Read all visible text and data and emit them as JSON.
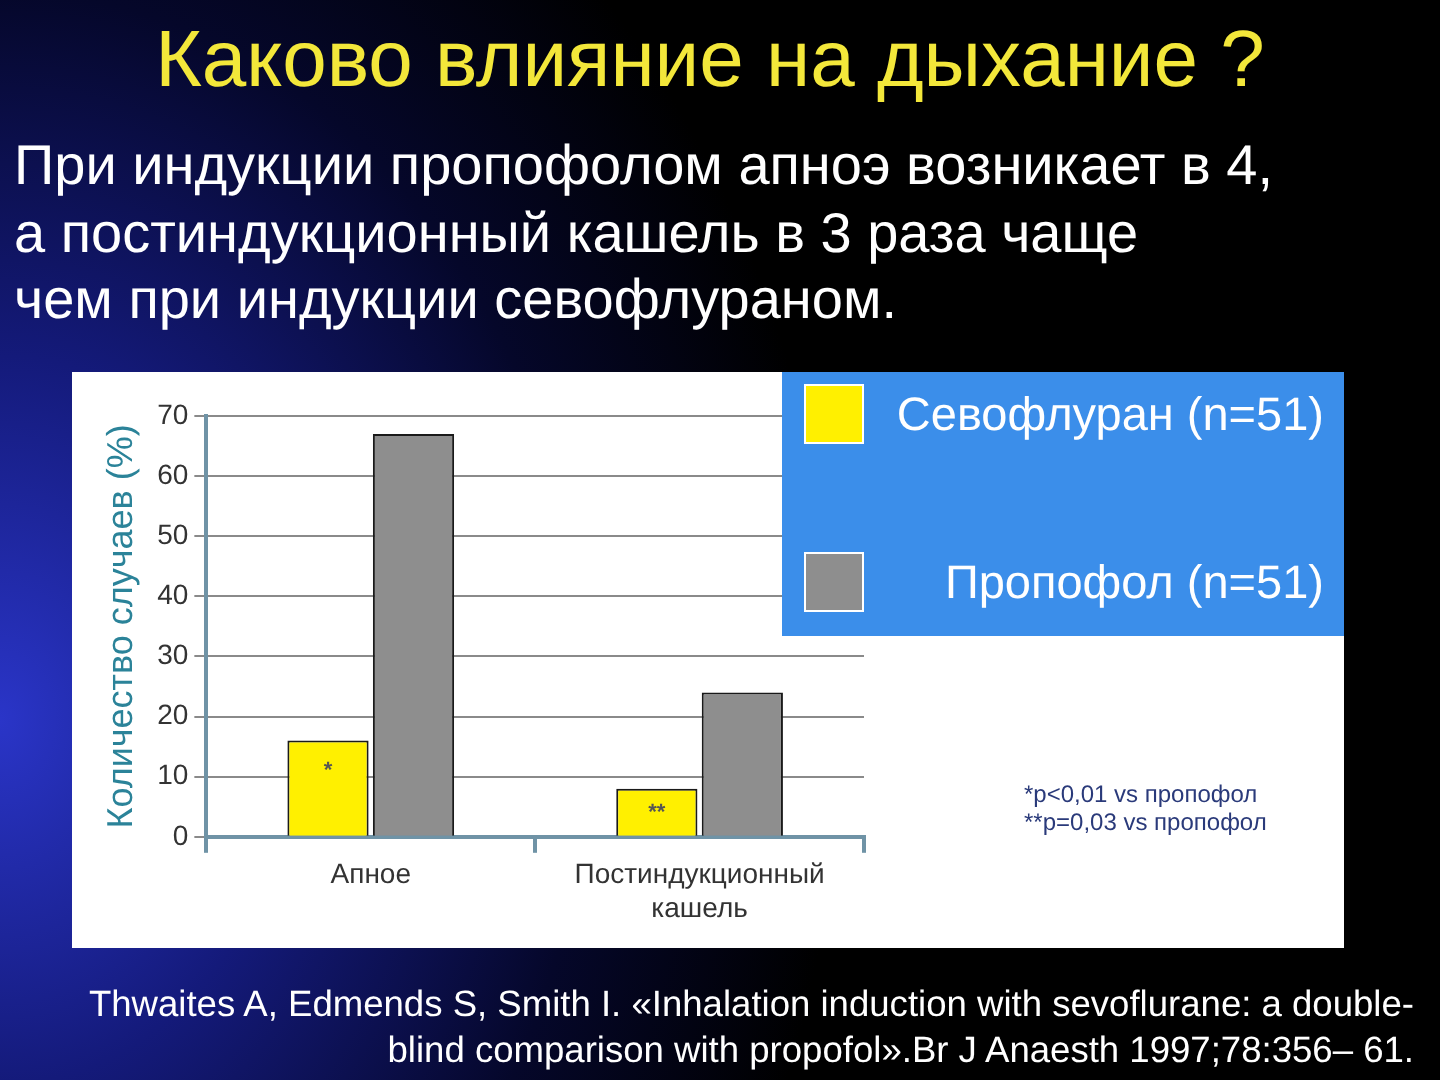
{
  "chart_data": {
    "type": "bar",
    "title": "Каково влияние на дыхание ?",
    "subtitle": "При индукции пропофолом апноэ возникает в 4,\nа постиндукционный кашель в 3 раза чаще\nчем при индукции севофлураном.",
    "ylabel": "Количество случаев (%)",
    "categories": [
      "Апное",
      "Постиндукционный кашель"
    ],
    "series": [
      {
        "name": "Севофлуран (n=51)",
        "color": "#fff000",
        "values": [
          16,
          8
        ]
      },
      {
        "name": "Пропофол (n=51)",
        "color": "#8e8e8e",
        "values": [
          67,
          24
        ]
      }
    ],
    "ylim": [
      0,
      70
    ],
    "yticks": [
      0,
      10,
      20,
      30,
      40,
      50,
      60,
      70
    ],
    "grid": "y",
    "legend": "top right",
    "annotations": [
      {
        "text": "*",
        "x": "Апное",
        "y": 11
      },
      {
        "text": "**",
        "x": "Постиндукционный кашель",
        "y": 4
      },
      "*p<0,01 vs пропофол",
      "**p=0,03 vs пропофол",
      "Thwaites A, Edmends S, Smith I. «Inhalation induction with sevoflurane: a double-blind comparison with propofol».Br J Anaesth 1997;78:356– 61."
    ]
  }
}
